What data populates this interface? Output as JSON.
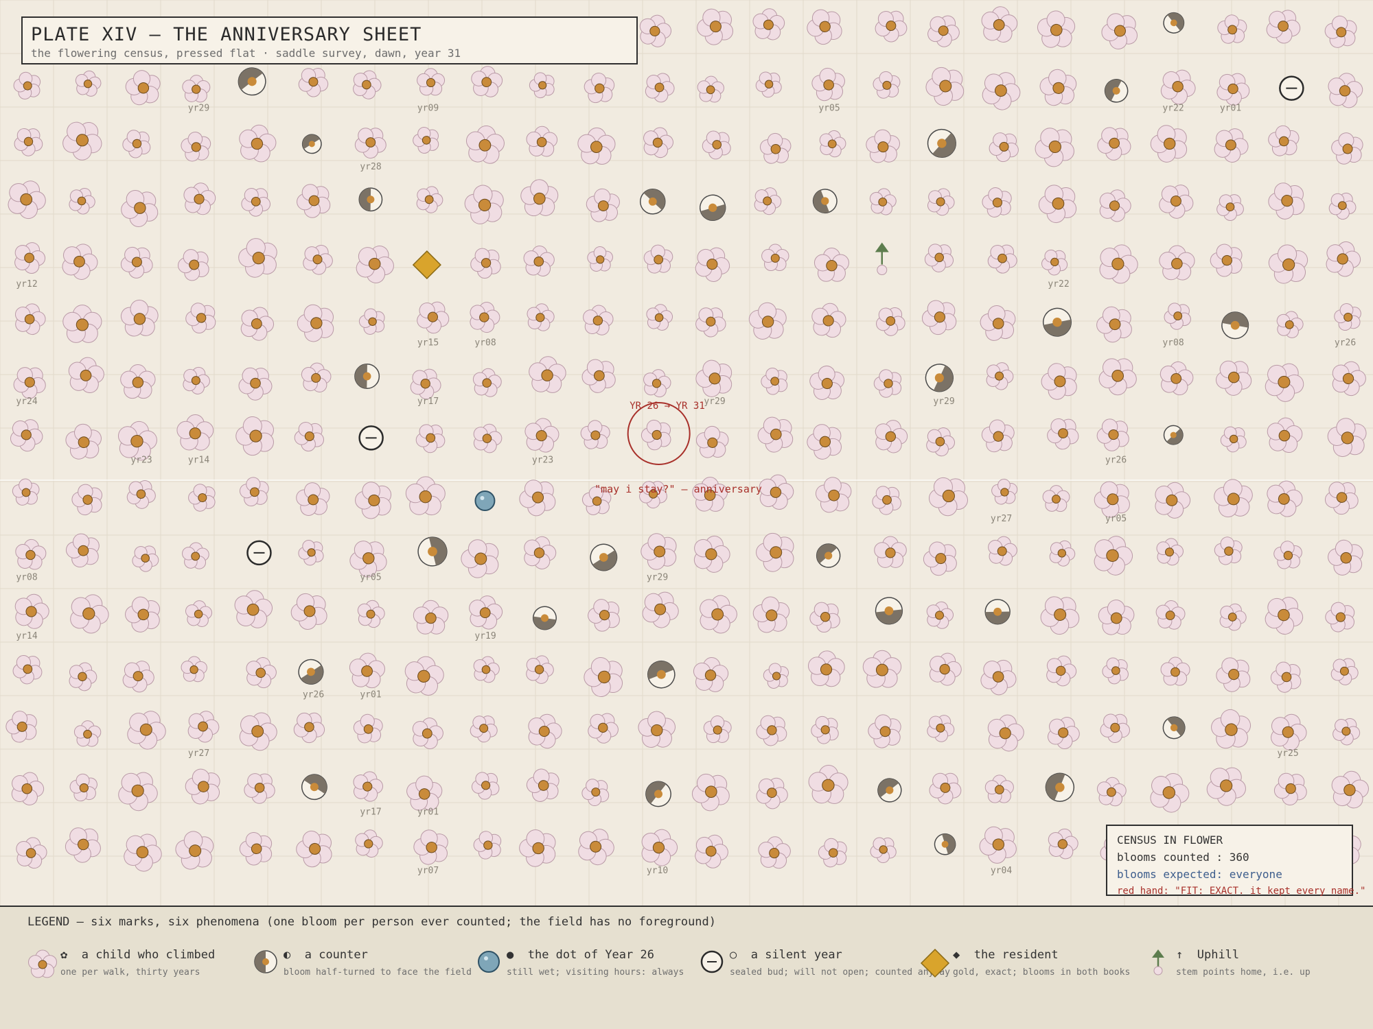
{
  "title": "PLATE XIV — THE ANNIVERSARY SHEET",
  "subtitle": "the flowering census, pressed flat · saddle survey, dawn, year 31",
  "annotation": {
    "top": "YR 26 → YR 31",
    "bottom": "\"may i stay?\" — anniversary"
  },
  "census": {
    "heading": "CENSUS IN FLOWER",
    "counted": "blooms counted : 360",
    "expected": "blooms expected: everyone",
    "note": "red hand: \"FIT: EXACT. it kept every name.\""
  },
  "legend": {
    "title": "LEGEND — six marks, six phenomena (one bloom per person ever counted; the field has no foreground)",
    "items": [
      {
        "glyph": "✿",
        "label": "a child who climbed",
        "sub": "one per walk, thirty years",
        "icon": "flower-icon"
      },
      {
        "glyph": "◐",
        "label": "a counter",
        "sub": "bloom half-turned to face the field",
        "icon": "half-disc-icon"
      },
      {
        "glyph": "●",
        "label": "the dot of Year 26",
        "sub": "still wet; visiting hours: always",
        "icon": "blue-dot-icon"
      },
      {
        "glyph": "○",
        "label": "a silent year",
        "sub": "sealed bud; will not open; counted anyway",
        "icon": "sealed-bud-icon"
      },
      {
        "glyph": "◆",
        "label": "the resident",
        "sub": "gold, exact; blooms in both books",
        "icon": "gold-diamond-icon"
      },
      {
        "glyph": "↑",
        "label": "Uphill",
        "sub": "stem points home, i.e. up",
        "icon": "up-arrow-icon"
      }
    ]
  },
  "year_labels": [
    {
      "col": 3,
      "row": 1,
      "text": "yr29"
    },
    {
      "col": 7,
      "row": 1,
      "text": "yr09"
    },
    {
      "col": 14,
      "row": 1,
      "text": "yr05"
    },
    {
      "col": 20,
      "row": 1,
      "text": "yr22"
    },
    {
      "col": 21,
      "row": 1,
      "text": "yr01"
    },
    {
      "col": 6,
      "row": 2,
      "text": "yr28"
    },
    {
      "col": 0,
      "row": 4,
      "text": "yr12"
    },
    {
      "col": 18,
      "row": 4,
      "text": "yr22"
    },
    {
      "col": 7,
      "row": 5,
      "text": "yr15"
    },
    {
      "col": 8,
      "row": 5,
      "text": "yr08"
    },
    {
      "col": 20,
      "row": 5,
      "text": "yr08"
    },
    {
      "col": 23,
      "row": 5,
      "text": "yr26"
    },
    {
      "col": 0,
      "row": 6,
      "text": "yr24"
    },
    {
      "col": 7,
      "row": 6,
      "text": "yr17"
    },
    {
      "col": 12,
      "row": 6,
      "text": "yr29"
    },
    {
      "col": 16,
      "row": 6,
      "text": "yr29"
    },
    {
      "col": 2,
      "row": 7,
      "text": "yr23"
    },
    {
      "col": 3,
      "row": 7,
      "text": "yr14"
    },
    {
      "col": 9,
      "row": 7,
      "text": "yr23"
    },
    {
      "col": 19,
      "row": 7,
      "text": "yr26"
    },
    {
      "col": 17,
      "row": 8,
      "text": "yr27"
    },
    {
      "col": 19,
      "row": 8,
      "text": "yr05"
    },
    {
      "col": 0,
      "row": 9,
      "text": "yr08"
    },
    {
      "col": 6,
      "row": 9,
      "text": "yr05"
    },
    {
      "col": 11,
      "row": 9,
      "text": "yr29"
    },
    {
      "col": 0,
      "row": 10,
      "text": "yr14"
    },
    {
      "col": 8,
      "row": 10,
      "text": "yr19"
    },
    {
      "col": 5,
      "row": 11,
      "text": "yr26"
    },
    {
      "col": 6,
      "row": 11,
      "text": "yr01"
    },
    {
      "col": 3,
      "row": 12,
      "text": "yr27"
    },
    {
      "col": 22,
      "row": 12,
      "text": "yr25"
    },
    {
      "col": 6,
      "row": 13,
      "text": "yr17"
    },
    {
      "col": 7,
      "row": 13,
      "text": "yr01"
    },
    {
      "col": 7,
      "row": 14,
      "text": "yr07"
    },
    {
      "col": 11,
      "row": 14,
      "text": "yr10"
    },
    {
      "col": 17,
      "row": 14,
      "text": "yr04"
    }
  ],
  "counters": [
    [
      20,
      0
    ],
    [
      4,
      1
    ],
    [
      19,
      1
    ],
    [
      5,
      2
    ],
    [
      16,
      2
    ],
    [
      6,
      3
    ],
    [
      11,
      3
    ],
    [
      12,
      3
    ],
    [
      14,
      3
    ],
    [
      18,
      5
    ],
    [
      21,
      5
    ],
    [
      6,
      6
    ],
    [
      16,
      6
    ],
    [
      20,
      7
    ],
    [
      7,
      9
    ],
    [
      10,
      9
    ],
    [
      14,
      9
    ],
    [
      9,
      10
    ],
    [
      15,
      10
    ],
    [
      17,
      10
    ],
    [
      5,
      11
    ],
    [
      11,
      11
    ],
    [
      20,
      12
    ],
    [
      5,
      13
    ],
    [
      11,
      13
    ],
    [
      15,
      13
    ],
    [
      18,
      13
    ],
    [
      16,
      14
    ]
  ],
  "silent_years": [
    [
      22,
      1
    ],
    [
      6,
      7
    ],
    [
      4,
      9
    ]
  ],
  "resident": [
    7,
    4
  ],
  "uphill": [
    15,
    4
  ],
  "dot_year26": [
    8,
    8
  ],
  "anniversary": [
    11,
    7
  ],
  "colors": {
    "petal": "#f0dde3",
    "petal_stroke": "#b99aa6",
    "center": "#c98b3a",
    "counter_dark": "#7b7266",
    "blue_dot": "#7fa6b8",
    "gold": "#d9a42c",
    "green": "#5d7d4e",
    "red": "#a8302a"
  }
}
